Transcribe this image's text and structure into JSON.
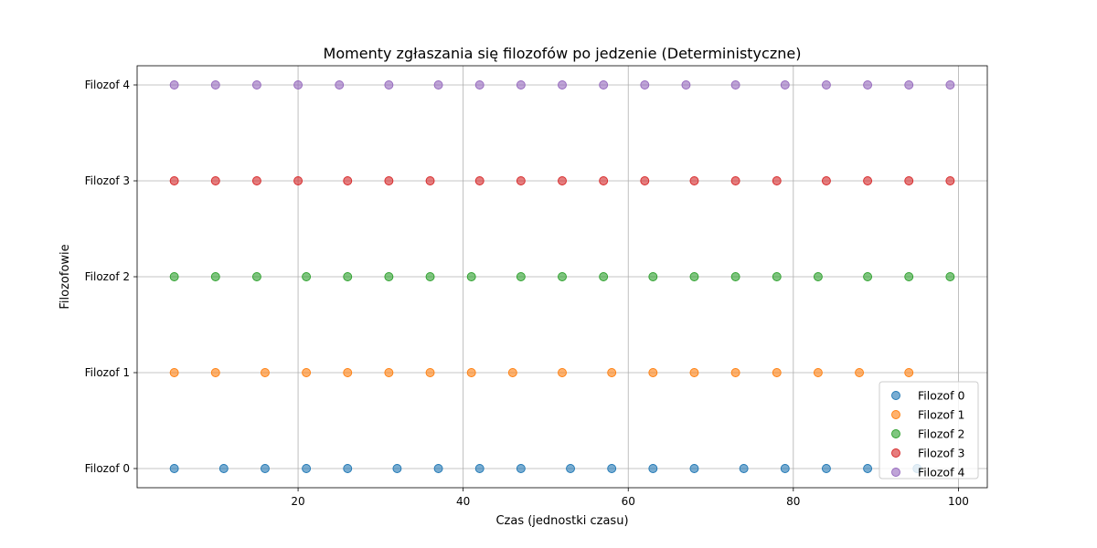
{
  "chart_data": {
    "type": "scatter",
    "title": "Momenty zgłaszania się filozofów po jedzenie (Deterministyczne)",
    "xlabel": "Czas (jednostki czasu)",
    "ylabel": "Filozofowie",
    "xlim": [
      0.5,
      103.5
    ],
    "ylim": [
      -0.2,
      4.2
    ],
    "xticks": [
      20,
      40,
      60,
      80,
      100
    ],
    "yticks": [
      0,
      1,
      2,
      3,
      4
    ],
    "ytick_labels": [
      "Filozof 0",
      "Filozof 1",
      "Filozof 2",
      "Filozof 3",
      "Filozof 4"
    ],
    "grid": true,
    "legend_position": "lower-right",
    "series": [
      {
        "name": "Filozof 0",
        "color": "#1f77b4",
        "y": 0,
        "x": [
          5,
          11,
          16,
          21,
          26,
          32,
          37,
          42,
          47,
          53,
          58,
          63,
          68,
          74,
          79,
          84,
          89,
          95
        ]
      },
      {
        "name": "Filozof 1",
        "color": "#ff7f0e",
        "y": 1,
        "x": [
          5,
          10,
          16,
          21,
          26,
          31,
          36,
          41,
          46,
          52,
          58,
          63,
          68,
          73,
          78,
          83,
          88,
          94
        ]
      },
      {
        "name": "Filozof 2",
        "color": "#2ca02c",
        "y": 2,
        "x": [
          5,
          10,
          15,
          21,
          26,
          31,
          36,
          41,
          47,
          52,
          57,
          63,
          68,
          73,
          78,
          83,
          89,
          94,
          99
        ]
      },
      {
        "name": "Filozof 3",
        "color": "#d62728",
        "y": 3,
        "x": [
          5,
          10,
          15,
          20,
          26,
          31,
          36,
          42,
          47,
          52,
          57,
          62,
          68,
          73,
          78,
          84,
          89,
          94,
          99
        ]
      },
      {
        "name": "Filozof 4",
        "color": "#9467bd",
        "y": 4,
        "x": [
          5,
          10,
          15,
          20,
          25,
          31,
          37,
          42,
          47,
          52,
          57,
          62,
          67,
          73,
          79,
          84,
          89,
          94,
          99
        ]
      }
    ]
  }
}
